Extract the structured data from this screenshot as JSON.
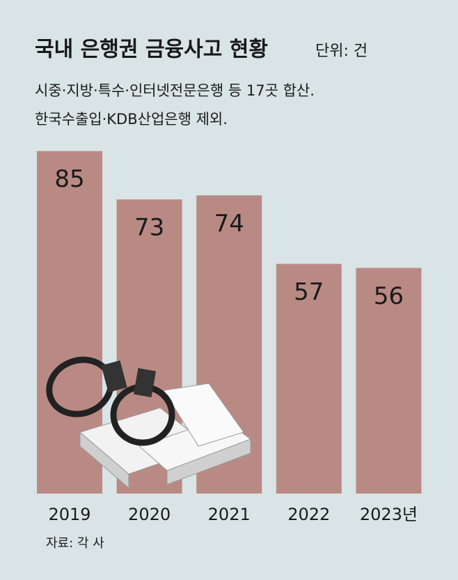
{
  "chart_data": {
    "type": "bar",
    "title": "국내 은행권 금융사고 현황",
    "subtitle": "단위: 건",
    "notes": [
      "시중·지방·특수·인터넷전문은행 등 17곳 합산.",
      "한국수출입·KDB산업은행 제외."
    ],
    "categories": [
      "2019",
      "2020",
      "2021",
      "2022",
      "2023년"
    ],
    "values": [
      85,
      73,
      74,
      57,
      56
    ],
    "color": "#b98a84",
    "source": "자료: 각 사"
  }
}
